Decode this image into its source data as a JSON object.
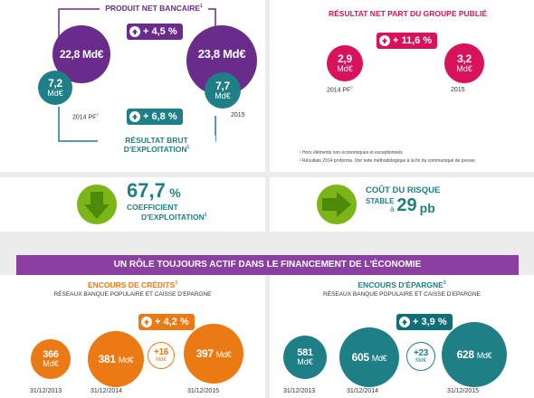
{
  "colors": {
    "purple": "#6a2c8a",
    "teal": "#1f7f86",
    "magenta": "#d8125b",
    "green": "#7cb518",
    "orange": "#ec7a14",
    "banner": "#8b3fa1",
    "dark_teal": "#0f6e73"
  },
  "pnb": {
    "title": "PRODUIT NET BANCAIRE",
    "title_sup": "1",
    "change": "+ 4,5 %",
    "y2014_big_value": "22,8",
    "y2014_big_unit": "Md€",
    "y2014_small_value": "7,2",
    "y2014_small_unit": "Md€",
    "y2015_big_value": "23,8",
    "y2015_big_unit": "Md€",
    "y2015_small_value": "7,7",
    "y2015_small_unit": "Md€",
    "label_2014": "2014 PF",
    "label_2014_sup": "2",
    "label_2015": "2015"
  },
  "rbe": {
    "change": "+ 6,8 %",
    "title_line1": "RÉSULTAT BRUT",
    "title_line2": "D'EXPLOITATION",
    "title_sup": "1"
  },
  "resultat": {
    "title": "Résultat net part du groupe publié",
    "change": "+ 11,6 %",
    "v2014_value": "2,9",
    "v2014_unit": "Md€",
    "v2015_value": "3,2",
    "v2015_unit": "Md€",
    "label_2014": "2014 PF",
    "label_2014_sup": "2",
    "label_2015": "2015"
  },
  "notes": {
    "n1": "¹ Hors éléments non économiques et exceptionnels",
    "n2": "² Résultats 2014 proforma. Voir note méthodologique à la fin du communiqué de presse"
  },
  "coefficient": {
    "value": "67,7",
    "unit": "%",
    "line1": "COEFFICIENT",
    "line2": "D'EXPLOITATION",
    "sup": "1"
  },
  "risque": {
    "line1": "COÛT DU RISQUE",
    "stable": "STABLE",
    "a": "à",
    "value": "29",
    "unit": "pb"
  },
  "banner": {
    "title": "UN RÔLE TOUJOURS ACTIF DANS LE FINANCEMENT DE L'ÉCONOMIE"
  },
  "credits": {
    "title": "ENCOURS DE CRÉDITS",
    "title_sup": "3",
    "subtitle": "RÉSEAUX BANQUE POPULAIRE ET CAISSE D'EPARGNE",
    "change": "+ 4,2 %",
    "delta_value": "+16",
    "delta_unit": "Md€",
    "c1_value": "366",
    "c1_unit": "Md€",
    "c1_date": "31/12/2013",
    "c2_value": "381",
    "c2_unit": "Md€",
    "c2_date": "31/12/2014",
    "c3_value": "397",
    "c3_unit": "Md€",
    "c3_date": "31/12/2015"
  },
  "epargne": {
    "title": "ENCOURS D'ÉPARGNE",
    "title_sup": "3",
    "subtitle": "RÉSEAUX BANQUE POPULAIRE ET CAISSE D'EPARGNE",
    "change": "+ 3,9 %",
    "delta_value": "+23",
    "delta_unit": "Md€",
    "c1_value": "581",
    "c1_unit": "Md€",
    "c1_date": "31/12/2013",
    "c2_value": "605",
    "c2_unit": "Md€",
    "c2_date": "31/12/2014",
    "c3_value": "628",
    "c3_unit": "Md€",
    "c3_date": "31/12/2015"
  }
}
